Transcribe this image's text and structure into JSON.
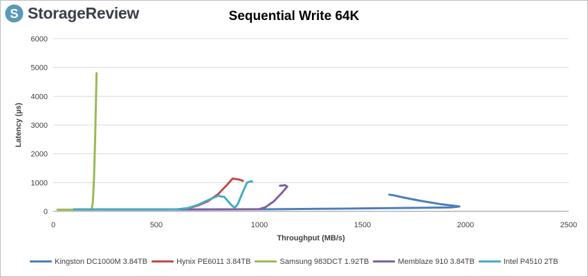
{
  "brand": {
    "name": "StorageReview",
    "logo_color": "#5a9ab8"
  },
  "chart_data": {
    "type": "line",
    "title": "Sequential Write 64K",
    "xlabel": "Throughput (MB/s)",
    "ylabel": "Latency (µs)",
    "xlim": [
      0,
      2500
    ],
    "ylim": [
      0,
      6000
    ],
    "xticks": [
      0,
      500,
      1000,
      1500,
      2000,
      2500
    ],
    "yticks": [
      0,
      1000,
      2000,
      3000,
      4000,
      5000,
      6000
    ],
    "grid": "horizontal",
    "legend_position": "bottom",
    "series": [
      {
        "name": "Kingston DC1000M 3.84TB",
        "color": "#4a7ebb",
        "points": [
          [
            100,
            70
          ],
          [
            400,
            66
          ],
          [
            700,
            67
          ],
          [
            1000,
            72
          ],
          [
            1300,
            90
          ],
          [
            1600,
            110
          ],
          [
            1800,
            125
          ],
          [
            1930,
            140
          ],
          [
            1970,
            170
          ],
          [
            1945,
            195
          ],
          [
            1880,
            250
          ],
          [
            1780,
            370
          ],
          [
            1700,
            480
          ],
          [
            1650,
            560
          ],
          [
            1630,
            580
          ]
        ]
      },
      {
        "name": "Hynix PE6011 3.84TB",
        "color": "#be4b48",
        "points": [
          [
            100,
            70
          ],
          [
            400,
            70
          ],
          [
            600,
            72
          ],
          [
            650,
            100
          ],
          [
            700,
            200
          ],
          [
            750,
            350
          ],
          [
            800,
            600
          ],
          [
            840,
            900
          ],
          [
            870,
            1140
          ],
          [
            900,
            1110
          ],
          [
            920,
            1060
          ]
        ]
      },
      {
        "name": "Samsung 983DCT 1.92TB",
        "color": "#98b954",
        "points": [
          [
            20,
            60
          ],
          [
            80,
            60
          ],
          [
            150,
            60
          ],
          [
            185,
            60
          ],
          [
            192,
            300
          ],
          [
            198,
            1200
          ],
          [
            203,
            2500
          ],
          [
            207,
            3800
          ],
          [
            210,
            4800
          ]
        ]
      },
      {
        "name": "Memblaze 910 3.84TB",
        "color": "#7d60a0",
        "points": [
          [
            100,
            70
          ],
          [
            400,
            70
          ],
          [
            700,
            70
          ],
          [
            900,
            72
          ],
          [
            1000,
            80
          ],
          [
            1030,
            150
          ],
          [
            1070,
            350
          ],
          [
            1110,
            650
          ],
          [
            1135,
            860
          ],
          [
            1125,
            910
          ],
          [
            1100,
            890
          ]
        ]
      },
      {
        "name": "Intel P4510 2TB",
        "color": "#46aac5",
        "points": [
          [
            100,
            70
          ],
          [
            400,
            70
          ],
          [
            600,
            72
          ],
          [
            650,
            110
          ],
          [
            700,
            220
          ],
          [
            760,
            420
          ],
          [
            800,
            540
          ],
          [
            830,
            500
          ],
          [
            860,
            250
          ],
          [
            880,
            120
          ],
          [
            895,
            250
          ],
          [
            915,
            600
          ],
          [
            940,
            1000
          ],
          [
            960,
            1050
          ],
          [
            965,
            1030
          ]
        ]
      }
    ]
  }
}
